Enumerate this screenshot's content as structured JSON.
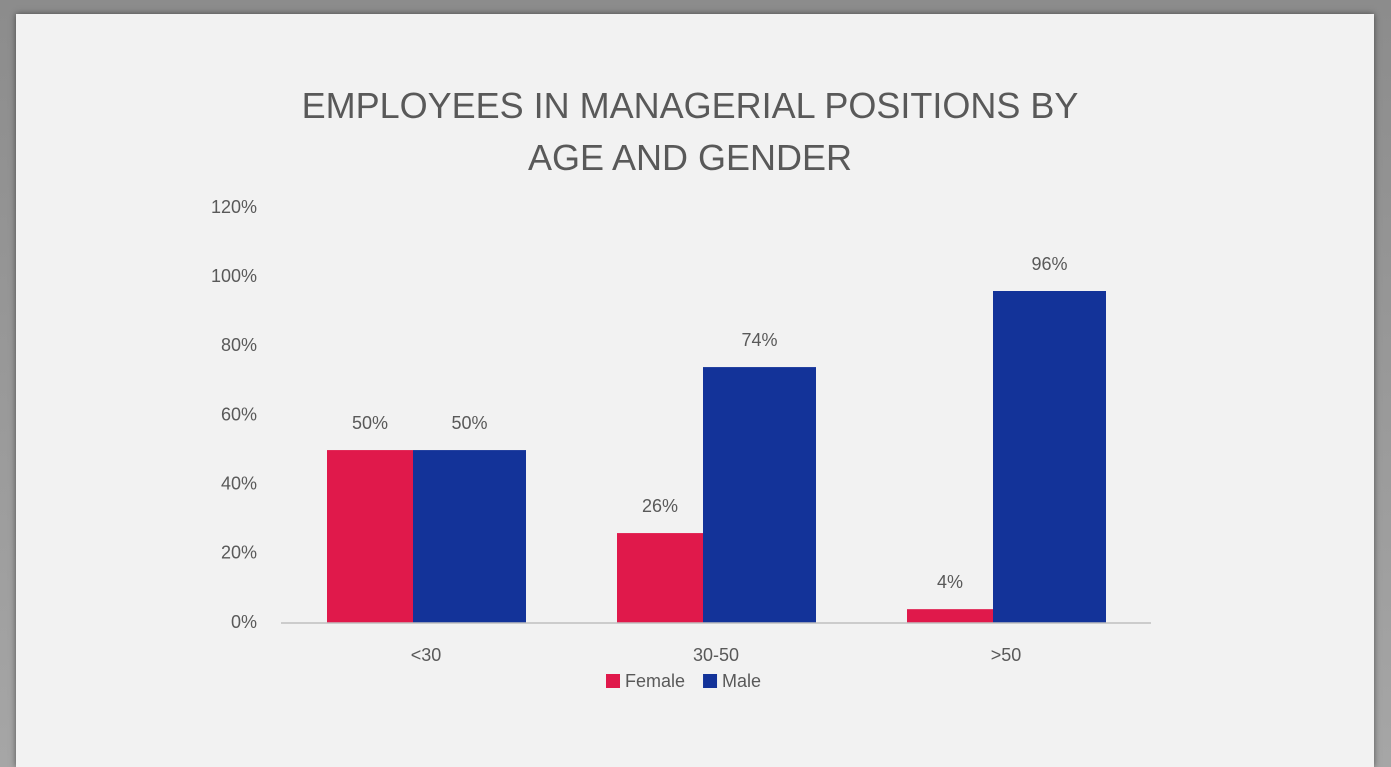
{
  "chart_data": {
    "type": "bar",
    "title": "EMPLOYEES IN MANAGERIAL POSITIONS BY AGE AND GENDER",
    "categories": [
      "<30",
      "30-50",
      ">50"
    ],
    "series": [
      {
        "name": "Female",
        "color": "#e0194b",
        "values": [
          50,
          26,
          4
        ],
        "value_labels": [
          "50%",
          "26%",
          "4%"
        ]
      },
      {
        "name": "Male",
        "color": "#133399",
        "values": [
          50,
          74,
          96
        ],
        "value_labels": [
          "50%",
          "74%",
          "96%"
        ]
      }
    ],
    "ylim": [
      0,
      120
    ],
    "yticks": [
      {
        "value": 0,
        "label": "0%"
      },
      {
        "value": 20,
        "label": "20%"
      },
      {
        "value": 40,
        "label": "40%"
      },
      {
        "value": 60,
        "label": "60%"
      },
      {
        "value": 80,
        "label": "80%"
      },
      {
        "value": 100,
        "label": "100%"
      },
      {
        "value": 120,
        "label": "120%"
      }
    ],
    "grid": false,
    "legend": "bottom"
  }
}
